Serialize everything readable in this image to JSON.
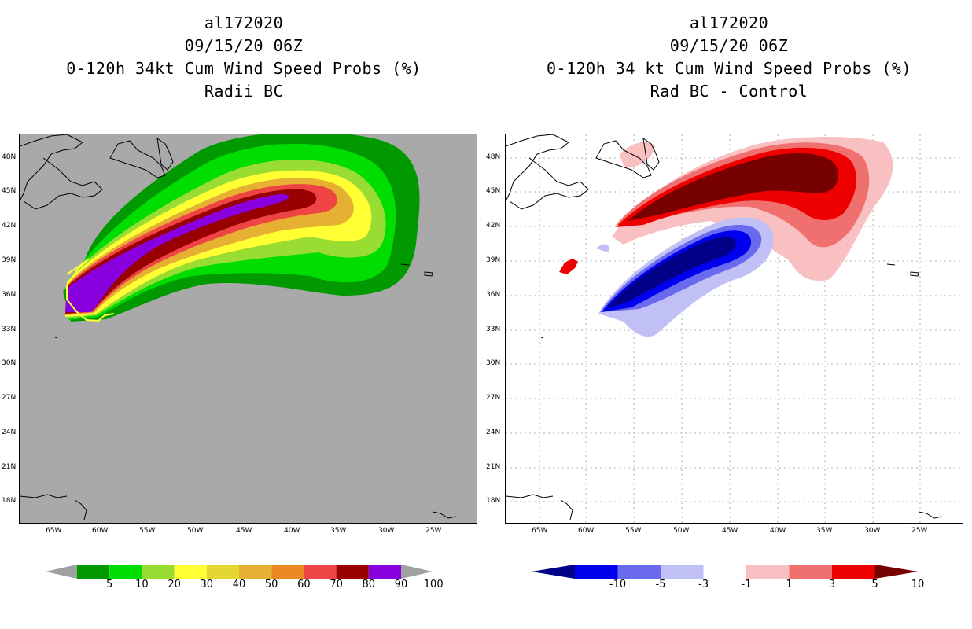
{
  "panels": [
    {
      "id": "left",
      "title_lines": [
        "al172020",
        "09/15/20 06Z",
        "0-120h 34kt Cum Wind Speed Probs (%)",
        "Radii BC"
      ],
      "background": "#a9a9a9",
      "colorbar": {
        "labels": [
          "5",
          "10",
          "20",
          "30",
          "40",
          "50",
          "60",
          "70",
          "80",
          "90",
          "100"
        ],
        "colors": [
          "#a0a0a0",
          "#009900",
          "#00dd00",
          "#99dd33",
          "#ffff33",
          "#e6d633",
          "#e6b033",
          "#ee8822",
          "#ee4444",
          "#990000",
          "#8800dd",
          "#a0a0a0"
        ]
      }
    },
    {
      "id": "right",
      "title_lines": [
        "al172020",
        "09/15/20 06Z",
        "0-120h 34 kt Cum Wind Speed Probs (%)",
        "Rad BC - Control"
      ],
      "background": "#ffffff",
      "colorbar": {
        "labels": [
          "-10",
          "-5",
          "-3",
          "-1",
          "1",
          "3",
          "5",
          "10"
        ],
        "colors": [
          "#000088",
          "#0000ee",
          "#6a6aee",
          "#c0c0f6",
          "#ffffff",
          "#f8c0c0",
          "#f07070",
          "#ee0000",
          "#770000"
        ]
      }
    }
  ],
  "lat_labels": [
    "48N",
    "45N",
    "42N",
    "39N",
    "36N",
    "33N",
    "30N",
    "27N",
    "24N",
    "21N",
    "18N"
  ],
  "lon_labels": [
    "65W",
    "60W",
    "55W",
    "50W",
    "45W",
    "40W",
    "35W",
    "30W",
    "25W"
  ],
  "chart_data": [
    {
      "type": "heatmap",
      "title": "0-120h 34kt Cum Wind Speed Probs (%) - Radii BC",
      "storm": "al172020",
      "valid": "09/15/20 06Z",
      "units": "%",
      "xlim_lon": [
        -69,
        -20
      ],
      "ylim_lat": [
        16.5,
        50
      ],
      "levels": [
        5,
        10,
        20,
        30,
        40,
        50,
        60,
        70,
        80,
        90,
        100
      ],
      "swath": {
        "description": "probability band along track from ~36N 63W to ~45N 41W",
        "track_points": [
          [
            -62.5,
            36.5
          ],
          [
            -58,
            37.5
          ],
          [
            -53,
            40
          ],
          [
            -48,
            42.5
          ],
          [
            -44,
            44.3
          ],
          [
            -41,
            45
          ]
        ],
        "max_prob": 100
      }
    },
    {
      "type": "heatmap",
      "title": "0-120h 34 kt Cum Wind Speed Probs (%) - Rad BC - Control",
      "storm": "al172020",
      "valid": "09/15/20 06Z",
      "units": "%",
      "xlim_lon": [
        -69,
        -20
      ],
      "ylim_lat": [
        16.5,
        50
      ],
      "levels": [
        -10,
        -5,
        -3,
        -1,
        1,
        3,
        5,
        10
      ],
      "positive_lobe": {
        "center_lon": -44,
        "center_lat": 44.5,
        "max_diff": 10
      },
      "negative_lobe": {
        "center_lon": -52,
        "center_lat": 38.5,
        "min_diff": -10
      }
    }
  ]
}
